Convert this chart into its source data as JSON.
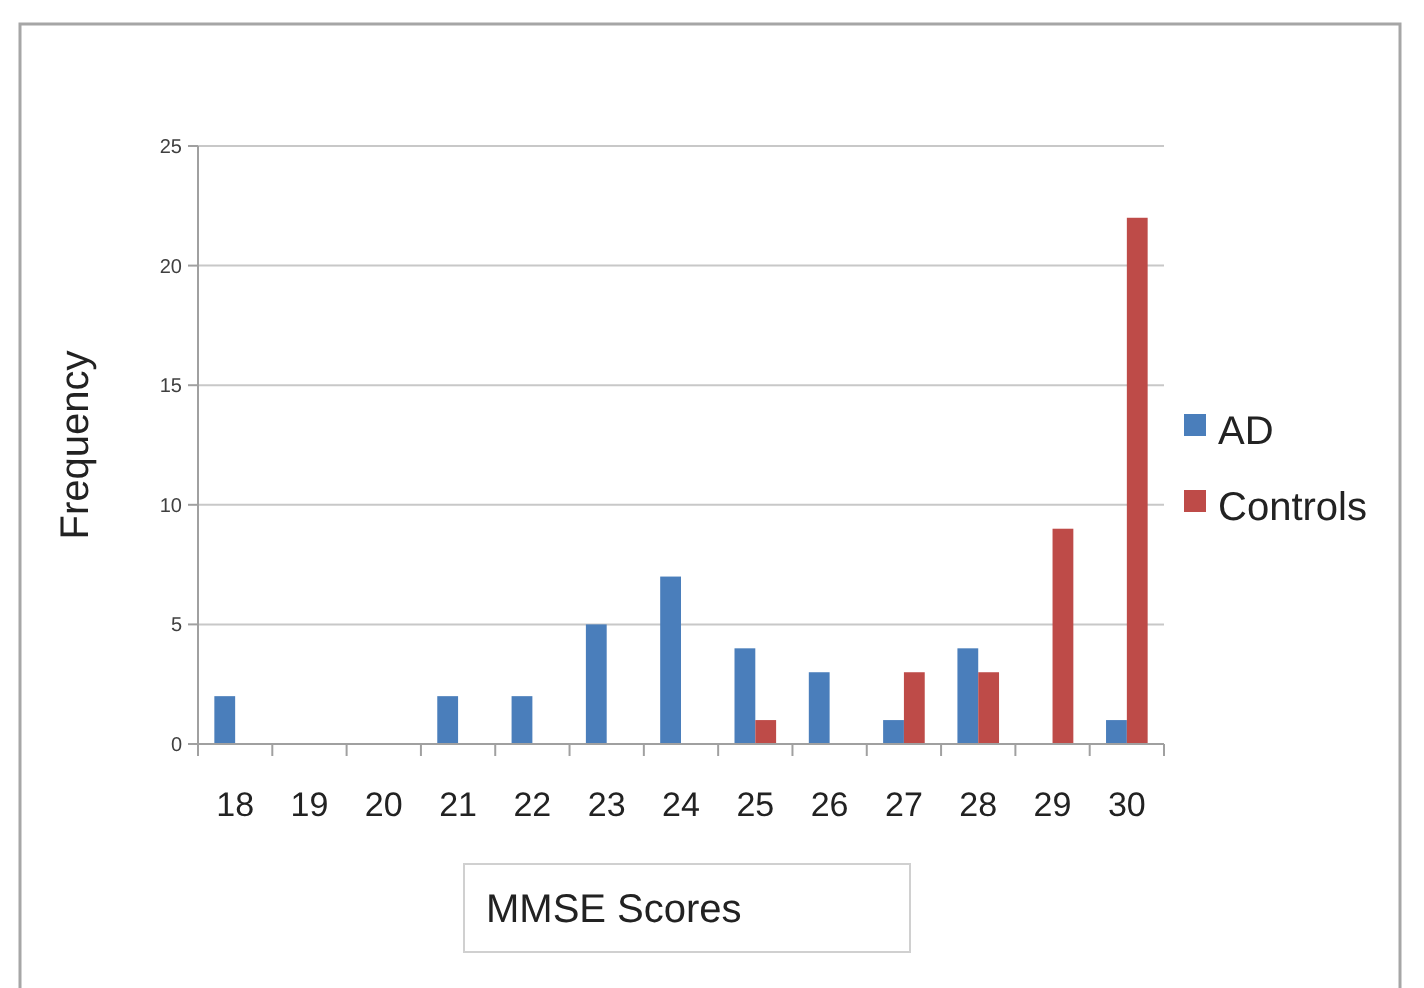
{
  "chart_data": {
    "type": "bar",
    "xlabel": "MMSE Scores",
    "ylabel": "Frequency",
    "categories": [
      "18",
      "19",
      "20",
      "21",
      "22",
      "23",
      "24",
      "25",
      "26",
      "27",
      "28",
      "29",
      "30"
    ],
    "series": [
      {
        "name": "AD",
        "color": "#4a7ebb",
        "values": [
          2,
          0,
          0,
          2,
          2,
          5,
          7,
          4,
          3,
          1,
          4,
          0,
          1
        ]
      },
      {
        "name": "Controls",
        "color": "#be4b48",
        "values": [
          0,
          0,
          0,
          0,
          0,
          0,
          0,
          1,
          0,
          3,
          3,
          9,
          22
        ]
      }
    ],
    "ylim": [
      0,
      25
    ],
    "yticks": [
      0,
      5,
      10,
      15,
      20,
      25
    ],
    "grid": "y",
    "legend": "right"
  }
}
